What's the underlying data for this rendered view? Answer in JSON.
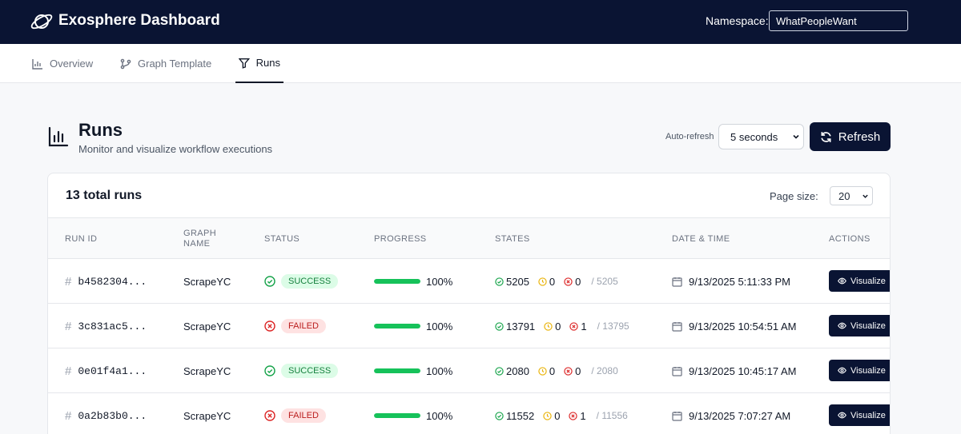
{
  "app": {
    "title": "Exosphere Dashboard"
  },
  "namespace": {
    "label": "Namespace:",
    "value": "WhatPeopleWant"
  },
  "nav": {
    "tabs": [
      {
        "label": "Overview",
        "icon": "bar-chart-icon"
      },
      {
        "label": "Graph Template",
        "icon": "git-branch-icon"
      },
      {
        "label": "Runs",
        "icon": "filter-icon",
        "active": true
      }
    ]
  },
  "page": {
    "title": "Runs",
    "subtitle": "Monitor and visualize workflow executions"
  },
  "controls": {
    "auto_refresh_label": "Auto-refresh",
    "auto_refresh_value": "5 seconds",
    "refresh_label": "Refresh"
  },
  "table": {
    "title": "13 total runs",
    "page_size_label": "Page size:",
    "page_size_value": "20",
    "headers": {
      "run_id": "RUN ID",
      "graph_name": "GRAPH NAME",
      "status": "STATUS",
      "progress": "PROGRESS",
      "states": "STATES",
      "datetime": "DATE & TIME",
      "actions": "ACTIONS"
    },
    "rows": [
      {
        "run_id": "b4582304...",
        "graph": "ScrapeYC",
        "status": "SUCCESS",
        "progress": 100,
        "progress_label": "100%",
        "success": "5205",
        "pending": "0",
        "errored": "0",
        "total": "/ 5205",
        "datetime": "9/13/2025 5:11:33 PM",
        "action": "Visualize"
      },
      {
        "run_id": "3c831ac5...",
        "graph": "ScrapeYC",
        "status": "FAILED",
        "progress": 100,
        "progress_label": "100%",
        "success": "13791",
        "pending": "0",
        "errored": "1",
        "total": "/ 13795",
        "datetime": "9/13/2025 10:54:51 AM",
        "action": "Visualize"
      },
      {
        "run_id": "0e01f4a1...",
        "graph": "ScrapeYC",
        "status": "SUCCESS",
        "progress": 100,
        "progress_label": "100%",
        "success": "2080",
        "pending": "0",
        "errored": "0",
        "total": "/ 2080",
        "datetime": "9/13/2025 10:45:17 AM",
        "action": "Visualize"
      },
      {
        "run_id": "0a2b83b0...",
        "graph": "ScrapeYC",
        "status": "FAILED",
        "progress": 100,
        "progress_label": "100%",
        "success": "11552",
        "pending": "0",
        "errored": "1",
        "total": "/ 11556",
        "datetime": "9/13/2025 7:07:27 AM",
        "action": "Visualize"
      }
    ]
  },
  "colors": {
    "navy": "#0a1433",
    "success": "#16a34a",
    "pending": "#eab308",
    "error": "#dc2626",
    "progress": "#16c25a"
  }
}
